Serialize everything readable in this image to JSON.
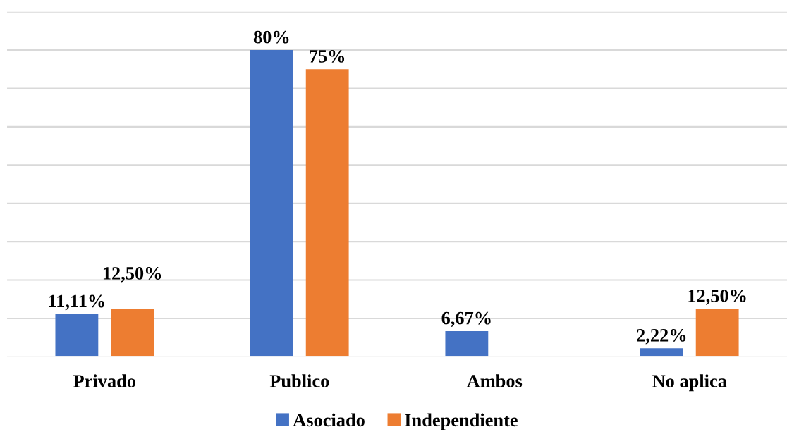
{
  "chart_data": {
    "type": "bar",
    "categories": [
      "Privado",
      "Publico",
      "Ambos",
      "No aplica"
    ],
    "series": [
      {
        "name": "Asociado",
        "color": "#4472c4",
        "values": [
          11.11,
          80,
          6.67,
          2.22
        ],
        "value_labels": [
          "11,11%",
          "80%",
          "6,67%",
          "2,22%"
        ]
      },
      {
        "name": "Independiente",
        "color": "#ed7d31",
        "values": [
          12.5,
          75,
          null,
          12.5
        ],
        "value_labels": [
          "12,50%",
          "75%",
          null,
          "12,50%"
        ]
      }
    ],
    "ylim": [
      0,
      90
    ],
    "yticks": [
      {
        "value": 0,
        "label": null
      },
      {
        "value": 10,
        "label": null
      },
      {
        "value": 20,
        "label": null
      },
      {
        "value": 30,
        "label": null
      },
      {
        "value": 40,
        "label": null
      },
      {
        "value": 50,
        "label": null
      },
      {
        "value": 60,
        "label": null
      },
      {
        "value": 70,
        "label": null
      },
      {
        "value": 80,
        "label": null
      },
      {
        "value": 90,
        "label": null
      }
    ],
    "tick_labels": "x",
    "grid": "y",
    "legend": "bottom"
  }
}
